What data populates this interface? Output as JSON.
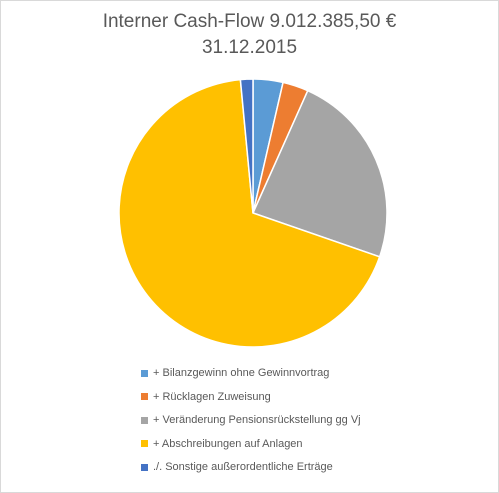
{
  "chart_data": {
    "type": "pie",
    "title": "Interner Cash-Flow 9.012.385,50 €",
    "subtitle": "31.12.2015",
    "legend_position": "bottom",
    "slices": [
      {
        "label": "+ Bilanzgewinn ohne Gewinnvortrag",
        "value": 3.6,
        "color": "#5b9bd5"
      },
      {
        "label": "+ Rücklagen Zuweisung",
        "value": 3.1,
        "color": "#ed7d31"
      },
      {
        "label": "+ Veränderung Pensionsrückstellung gg Vj",
        "value": 23.6,
        "color": "#a5a5a5"
      },
      {
        "label": "+ Abschreibungen auf Anlagen",
        "value": 68.2,
        "color": "#ffc000"
      },
      {
        "label": "./. Sonstige außerordentliche Erträge",
        "value": 1.5,
        "color": "#4472c4"
      }
    ]
  }
}
